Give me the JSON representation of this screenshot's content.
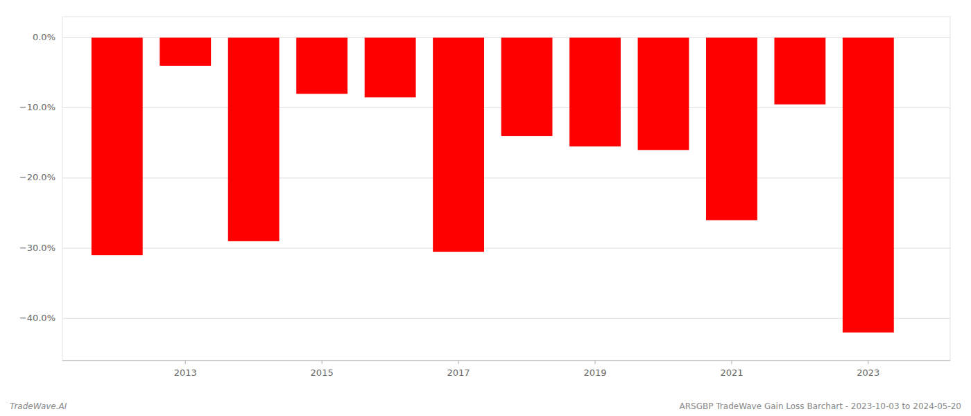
{
  "chart_data": {
    "type": "bar",
    "x": [
      2012,
      2013,
      2014,
      2015,
      2016,
      2017,
      2018,
      2019,
      2020,
      2021,
      2022,
      2023
    ],
    "values": [
      -31.0,
      -4.0,
      -29.0,
      -8.0,
      -8.5,
      -30.5,
      -14.0,
      -15.5,
      -16.0,
      -26.0,
      -9.5,
      -42.0
    ],
    "color": "#ff0000",
    "xlim": [
      2011.2,
      2024.2
    ],
    "xticks": [
      2013,
      2015,
      2017,
      2019,
      2021,
      2023
    ],
    "ylim": [
      -46,
      3
    ],
    "yticks": [
      {
        "value": 0,
        "label": "0.0%"
      },
      {
        "value": -10,
        "label": "−10.0%"
      },
      {
        "value": -20,
        "label": "−20.0%"
      },
      {
        "value": -30,
        "label": "−30.0%"
      },
      {
        "value": -40,
        "label": "−40.0%"
      }
    ],
    "grid": true,
    "annotations": [
      "TradeWave.AI",
      "ARSGBP TradeWave Gain Loss Barchart - 2023-10-03 to 2024-05-20"
    ]
  }
}
